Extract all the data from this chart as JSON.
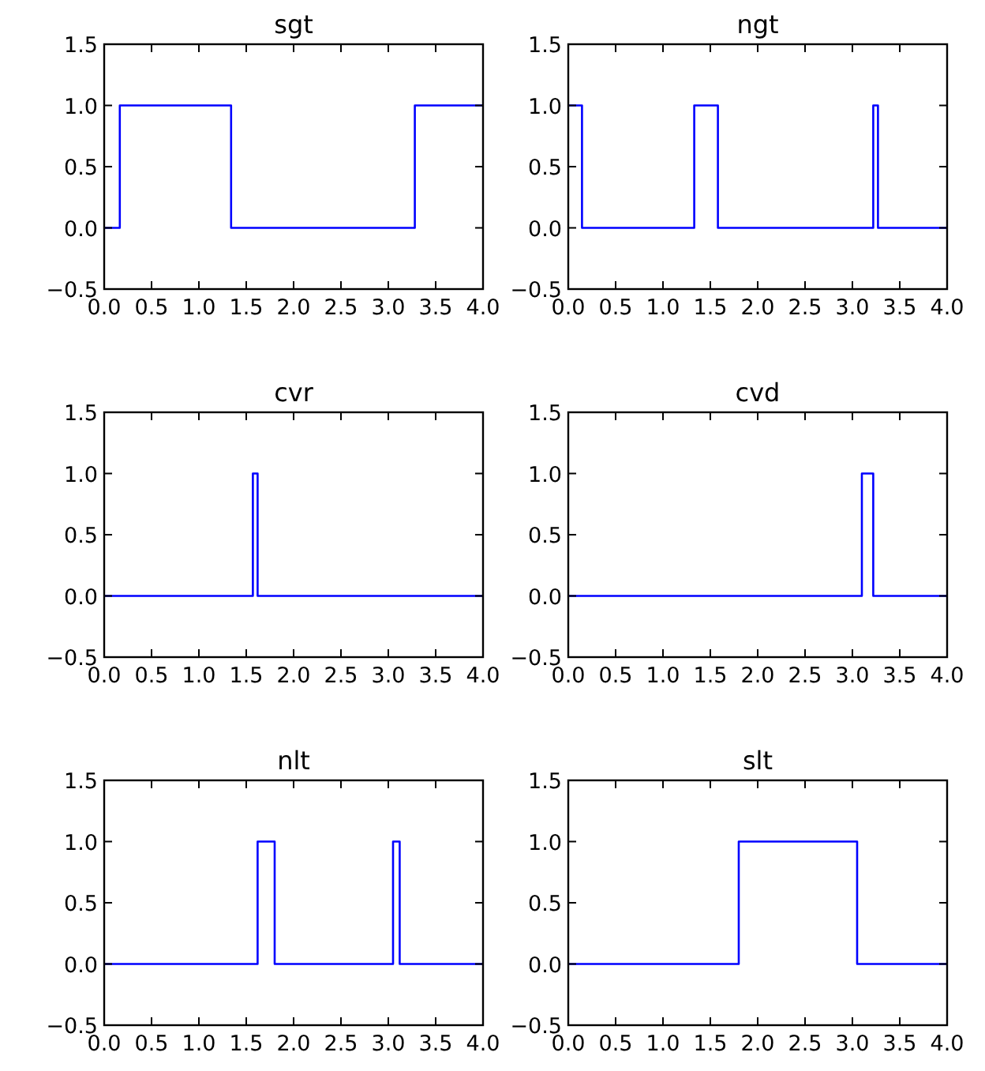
{
  "chart_data": [
    {
      "type": "step",
      "title": "sgt",
      "x": [
        0,
        0.165,
        1.34,
        3.28,
        4
      ],
      "values": [
        0,
        1,
        0,
        1,
        1
      ],
      "color": "#0000ff",
      "xlim": [
        0,
        4
      ],
      "ylim": [
        -0.5,
        1.5
      ],
      "xticks": [
        {
          "value": 0,
          "label": "0.0"
        },
        0.5,
        {
          "value": 1,
          "label": "1.0"
        },
        1.5,
        {
          "value": 2,
          "label": "2.0"
        },
        2.5,
        {
          "value": 3,
          "label": "3.0"
        },
        3.5,
        {
          "value": 4,
          "label": "4.0"
        }
      ],
      "yticks": [
        {
          "value": -0.5,
          "label": "−0.5"
        },
        {
          "value": 0,
          "label": "0.0"
        },
        {
          "value": 0.5,
          "label": "0.5"
        },
        {
          "value": 1,
          "label": "1.0"
        },
        {
          "value": 1.5,
          "label": "1.5"
        }
      ],
      "grid": false
    },
    {
      "type": "step",
      "title": "ngt",
      "x": [
        0,
        0.145,
        1.33,
        1.58,
        3.22,
        3.27,
        4
      ],
      "values": [
        1,
        0,
        1,
        0,
        1,
        0,
        0
      ],
      "color": "#0000ff",
      "xlim": [
        0,
        4
      ],
      "ylim": [
        -0.5,
        1.5
      ],
      "xticks": [
        {
          "value": 0,
          "label": "0.0"
        },
        0.5,
        {
          "value": 1,
          "label": "1.0"
        },
        1.5,
        {
          "value": 2,
          "label": "2.0"
        },
        2.5,
        {
          "value": 3,
          "label": "3.0"
        },
        3.5,
        {
          "value": 4,
          "label": "4.0"
        }
      ],
      "yticks": [
        {
          "value": -0.5,
          "label": "−0.5"
        },
        {
          "value": 0,
          "label": "0.0"
        },
        {
          "value": 0.5,
          "label": "0.5"
        },
        {
          "value": 1,
          "label": "1.0"
        },
        {
          "value": 1.5,
          "label": "1.5"
        }
      ],
      "grid": false
    },
    {
      "type": "step",
      "title": "cvr",
      "x": [
        0,
        1.57,
        1.62,
        4
      ],
      "values": [
        0,
        1,
        0,
        0
      ],
      "color": "#0000ff",
      "xlim": [
        0,
        4
      ],
      "ylim": [
        -0.5,
        1.5
      ],
      "xticks": [
        {
          "value": 0,
          "label": "0.0"
        },
        0.5,
        {
          "value": 1,
          "label": "1.0"
        },
        1.5,
        {
          "value": 2,
          "label": "2.0"
        },
        2.5,
        {
          "value": 3,
          "label": "3.0"
        },
        3.5,
        {
          "value": 4,
          "label": "4.0"
        }
      ],
      "yticks": [
        {
          "value": -0.5,
          "label": "−0.5"
        },
        {
          "value": 0,
          "label": "0.0"
        },
        {
          "value": 0.5,
          "label": "0.5"
        },
        {
          "value": 1,
          "label": "1.0"
        },
        {
          "value": 1.5,
          "label": "1.5"
        }
      ],
      "grid": false
    },
    {
      "type": "step",
      "title": "cvd",
      "x": [
        0,
        3.1,
        3.22,
        4
      ],
      "values": [
        0,
        1,
        0,
        0
      ],
      "color": "#0000ff",
      "xlim": [
        0,
        4
      ],
      "ylim": [
        -0.5,
        1.5
      ],
      "xticks": [
        {
          "value": 0,
          "label": "0.0"
        },
        0.5,
        {
          "value": 1,
          "label": "1.0"
        },
        1.5,
        {
          "value": 2,
          "label": "2.0"
        },
        2.5,
        {
          "value": 3,
          "label": "3.0"
        },
        3.5,
        {
          "value": 4,
          "label": "4.0"
        }
      ],
      "yticks": [
        {
          "value": -0.5,
          "label": "−0.5"
        },
        {
          "value": 0,
          "label": "0.0"
        },
        {
          "value": 0.5,
          "label": "0.5"
        },
        {
          "value": 1,
          "label": "1.0"
        },
        {
          "value": 1.5,
          "label": "1.5"
        }
      ],
      "grid": false
    },
    {
      "type": "step",
      "title": "nlt",
      "x": [
        0,
        1.62,
        1.8,
        3.05,
        3.12,
        4
      ],
      "values": [
        0,
        1,
        0,
        1,
        0,
        0
      ],
      "color": "#0000ff",
      "xlim": [
        0,
        4
      ],
      "ylim": [
        -0.5,
        1.5
      ],
      "xticks": [
        {
          "value": 0,
          "label": "0.0"
        },
        0.5,
        {
          "value": 1,
          "label": "1.0"
        },
        1.5,
        {
          "value": 2,
          "label": "2.0"
        },
        2.5,
        {
          "value": 3,
          "label": "3.0"
        },
        3.5,
        {
          "value": 4,
          "label": "4.0"
        }
      ],
      "yticks": [
        {
          "value": -0.5,
          "label": "−0.5"
        },
        {
          "value": 0,
          "label": "0.0"
        },
        {
          "value": 0.5,
          "label": "0.5"
        },
        {
          "value": 1,
          "label": "1.0"
        },
        {
          "value": 1.5,
          "label": "1.5"
        }
      ],
      "grid": false
    },
    {
      "type": "step",
      "title": "slt",
      "x": [
        0,
        1.8,
        3.05,
        4
      ],
      "values": [
        0,
        1,
        0,
        0
      ],
      "color": "#0000ff",
      "xlim": [
        0,
        4
      ],
      "ylim": [
        -0.5,
        1.5
      ],
      "xticks": [
        {
          "value": 0,
          "label": "0.0"
        },
        0.5,
        {
          "value": 1,
          "label": "1.0"
        },
        1.5,
        {
          "value": 2,
          "label": "2.0"
        },
        2.5,
        {
          "value": 3,
          "label": "3.0"
        },
        3.5,
        {
          "value": 4,
          "label": "4.0"
        }
      ],
      "yticks": [
        {
          "value": -0.5,
          "label": "−0.5"
        },
        {
          "value": 0,
          "label": "0.0"
        },
        {
          "value": 0.5,
          "label": "0.5"
        },
        {
          "value": 1,
          "label": "1.0"
        },
        {
          "value": 1.5,
          "label": "1.5"
        }
      ],
      "grid": false
    }
  ]
}
